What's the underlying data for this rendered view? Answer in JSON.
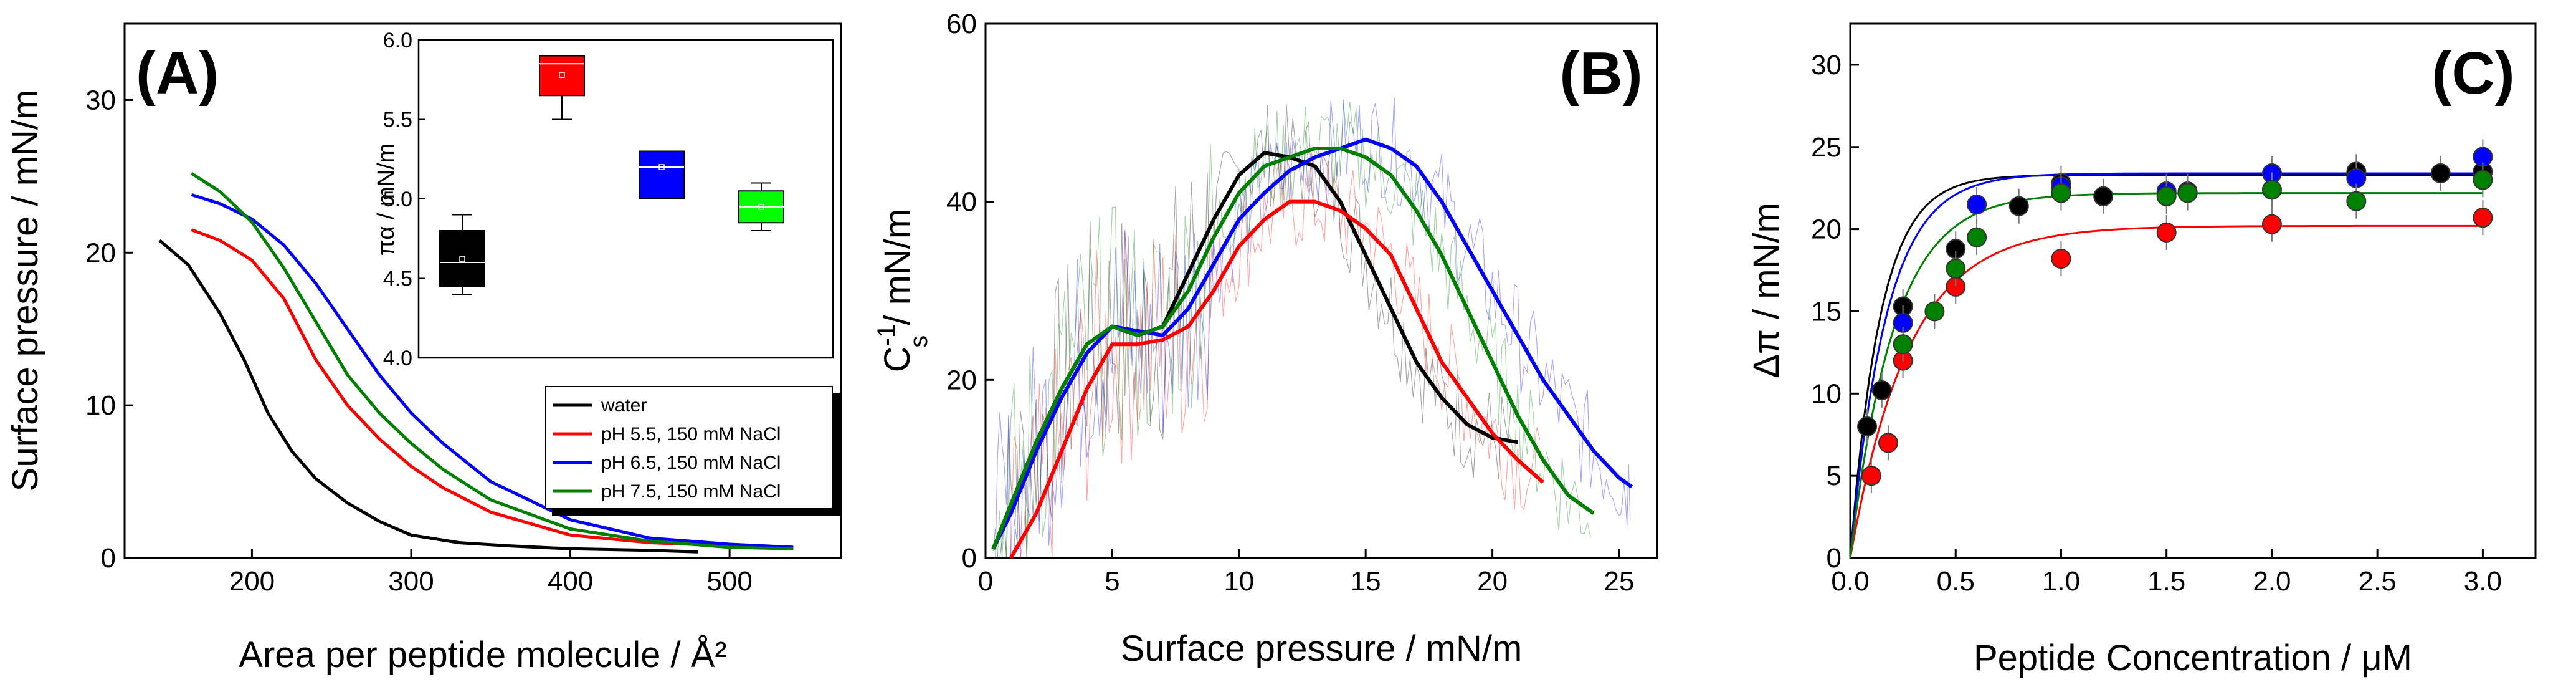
{
  "chart_data": [
    {
      "panel": "(A)",
      "type": "line",
      "xlabel": "Area per peptide molecule / Å²",
      "ylabel": "Surface pressure / mN/m",
      "xlim": [
        120,
        570
      ],
      "ylim": [
        0,
        35
      ],
      "xticks": [
        200,
        300,
        400,
        500
      ],
      "yticks": [
        0,
        10,
        20,
        30
      ],
      "legend_position": "bottom-right",
      "series": [
        {
          "name": "water",
          "color": "#000000",
          "x": [
            142,
            160,
            180,
            195,
            210,
            225,
            240,
            260,
            280,
            300,
            330,
            360,
            400,
            450,
            480
          ],
          "y": [
            20.8,
            19.2,
            16,
            13,
            9.5,
            7,
            5.2,
            3.6,
            2.4,
            1.5,
            1.0,
            0.8,
            0.6,
            0.5,
            0.4
          ]
        },
        {
          "name": "pH 5.5, 150 mM NaCl",
          "color": "#ff0000",
          "x": [
            162,
            180,
            200,
            220,
            240,
            260,
            280,
            300,
            320,
            350,
            400,
            450,
            500,
            540
          ],
          "y": [
            21.5,
            20.8,
            19.5,
            17,
            13,
            10,
            7.8,
            6,
            4.6,
            3,
            1.5,
            1.0,
            0.8,
            0.7
          ]
        },
        {
          "name": "pH 6.5, 150 mM NaCl",
          "color": "#0000ff",
          "x": [
            162,
            180,
            200,
            220,
            240,
            260,
            280,
            300,
            320,
            350,
            400,
            450,
            500,
            540
          ],
          "y": [
            23.8,
            23.2,
            22.2,
            20.5,
            18,
            15,
            12,
            9.5,
            7.5,
            5,
            2.5,
            1.3,
            0.9,
            0.7
          ]
        },
        {
          "name": "pH 7.5, 150 mM NaCl",
          "color": "#008000",
          "x": [
            162,
            180,
            200,
            220,
            240,
            260,
            280,
            300,
            320,
            350,
            400,
            450,
            500,
            540
          ],
          "y": [
            25.2,
            24,
            22,
            19,
            15.5,
            12,
            9.5,
            7.5,
            5.8,
            3.8,
            1.9,
            1.1,
            0.7,
            0.6
          ]
        }
      ],
      "inset": {
        "type": "box",
        "ylabel": "πα / mN/m",
        "ylim": [
          4.0,
          6.0
        ],
        "yticks": [
          4.0,
          4.5,
          5.0,
          5.5,
          6.0
        ],
        "boxes": [
          {
            "color": "#000000",
            "min": 4.4,
            "q1": 4.45,
            "median": 4.6,
            "mean": 4.62,
            "q3": 4.8,
            "max": 4.9
          },
          {
            "color": "#ff0000",
            "min": 5.5,
            "q1": 5.65,
            "median": 5.85,
            "mean": 5.78,
            "q3": 5.9,
            "max": 5.9
          },
          {
            "color": "#0000ff",
            "min": 5.0,
            "q1": 5.0,
            "median": 5.2,
            "mean": 5.2,
            "q3": 5.3,
            "max": 5.3
          },
          {
            "color": "#00ff00",
            "min": 4.8,
            "q1": 4.85,
            "median": 4.95,
            "mean": 4.95,
            "q3": 5.05,
            "max": 5.1
          }
        ]
      }
    },
    {
      "panel": "(B)",
      "type": "line",
      "xlabel": "Surface pressure / mN/m",
      "ylabel_main": "C",
      "ylabel_sup": "-1",
      "ylabel_sub": "s",
      "ylabel_unit": " / mN/m",
      "xlim": [
        0,
        26.5
      ],
      "ylim": [
        0,
        60
      ],
      "xticks": [
        0,
        5,
        10,
        15,
        20,
        25
      ],
      "yticks": [
        0,
        20,
        40,
        60
      ],
      "series": [
        {
          "name": "water",
          "color": "#000000",
          "x": [
            0.3,
            1,
            2,
            3,
            4,
            5,
            6,
            7,
            8,
            9,
            10,
            11,
            12,
            13,
            14,
            15,
            16,
            17,
            18,
            19,
            20,
            21
          ],
          "y": [
            1,
            6,
            13,
            19,
            24,
            26,
            25,
            26,
            32,
            38,
            43,
            45.5,
            45,
            44,
            40,
            34,
            28,
            22,
            18,
            15,
            13.5,
            13
          ]
        },
        {
          "name": "pH 5.5, 150 mM NaCl",
          "color": "#ff0000",
          "x": [
            1,
            2,
            3,
            4,
            5,
            6,
            7,
            8,
            9,
            10,
            11,
            12,
            13,
            14,
            15,
            16,
            17,
            18,
            19,
            20,
            21,
            22
          ],
          "y": [
            0,
            5,
            12,
            19,
            24,
            24,
            24.5,
            26,
            30,
            35,
            38,
            40,
            40,
            39,
            37,
            34,
            28,
            22,
            18,
            14,
            11,
            8.5
          ]
        },
        {
          "name": "pH 6.5, 150 mM NaCl",
          "color": "#0000ff",
          "x": [
            0.3,
            1,
            2,
            3,
            4,
            5,
            6,
            7,
            8,
            9,
            10,
            11,
            12,
            13,
            14,
            15,
            16,
            17,
            18,
            19,
            20,
            21,
            22,
            23,
            24,
            25,
            25.5
          ],
          "y": [
            1,
            5,
            12,
            18,
            23,
            26,
            25.5,
            25,
            28,
            33,
            38,
            41,
            43.5,
            45,
            46,
            47,
            46,
            44,
            40,
            35,
            30,
            25,
            20,
            16,
            12,
            9,
            8
          ]
        },
        {
          "name": "pH 7.5, 150 mM NaCl",
          "color": "#008000",
          "x": [
            0.3,
            1,
            2,
            3,
            4,
            5,
            6,
            7,
            8,
            9,
            10,
            11,
            12,
            13,
            14,
            15,
            16,
            17,
            18,
            19,
            20,
            21,
            22,
            23,
            24
          ],
          "y": [
            1,
            6,
            13,
            19,
            24,
            26,
            25,
            26,
            30,
            36,
            41,
            44,
            45,
            46,
            46,
            45,
            43,
            39,
            34,
            28,
            22,
            16,
            11,
            7,
            5
          ]
        }
      ]
    },
    {
      "panel": "(C)",
      "type": "scatter",
      "xlabel": "Peptide Concentration / μM",
      "ylabel": "Δπ / mN/m",
      "xlim": [
        0,
        3.25
      ],
      "ylim": [
        0,
        32.5
      ],
      "xticks": [
        0.0,
        0.5,
        1.0,
        1.5,
        2.0,
        2.5,
        3.0
      ],
      "yticks": [
        0,
        5,
        10,
        15,
        20,
        25,
        30
      ],
      "series": [
        {
          "name": "black",
          "color": "#000000",
          "x": [
            0.08,
            0.15,
            0.25,
            0.5,
            0.8,
            1.0,
            1.2,
            1.6,
            2.0,
            2.4,
            2.8,
            3.0
          ],
          "y": [
            8,
            10.2,
            15.3,
            18.8,
            21.4,
            22.8,
            22,
            22.3,
            22.4,
            23.5,
            23.4,
            23.5
          ],
          "fit_plateau": 23.3,
          "fit_k": 7.0
        },
        {
          "name": "red",
          "color": "#ff0000",
          "x": [
            0.1,
            0.18,
            0.25,
            0.5,
            1.0,
            1.5,
            2.0,
            3.0
          ],
          "y": [
            5,
            7,
            12,
            16.5,
            18.2,
            19.8,
            20.3,
            20.7
          ],
          "fit_plateau": 20.2,
          "fit_k": 3.6
        },
        {
          "name": "blue",
          "color": "#0000ff",
          "x": [
            0.25,
            0.6,
            1.0,
            1.5,
            2.0,
            2.4,
            3.0
          ],
          "y": [
            14.3,
            21.5,
            22.6,
            22.3,
            23.4,
            23.1,
            24.4
          ],
          "fit_plateau": 23.4,
          "fit_k": 5.8
        },
        {
          "name": "green",
          "color": "#008000",
          "x": [
            0.25,
            0.4,
            0.5,
            0.6,
            1.0,
            1.5,
            1.6,
            2.0,
            2.4,
            3.0
          ],
          "y": [
            13,
            15,
            17.6,
            19.5,
            22.2,
            22,
            22.2,
            22.4,
            21.7,
            23
          ],
          "fit_plateau": 22.2,
          "fit_k": 4.8
        }
      ]
    }
  ]
}
